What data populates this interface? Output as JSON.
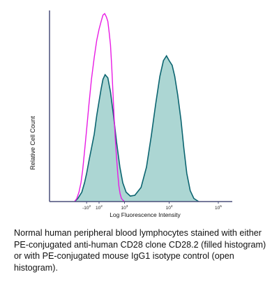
{
  "chart_data": {
    "type": "area",
    "title": "",
    "xlabel": "Log Fluorescence Intensity",
    "ylabel": "Relative Cell Count",
    "x_scale": "logicle",
    "x_ticks": [
      {
        "value": -100,
        "base": "-10",
        "exp": "2"
      },
      {
        "value": 100,
        "base": "10",
        "exp": "2"
      },
      {
        "value": 1000,
        "base": "10",
        "exp": "3"
      },
      {
        "value": 10000,
        "base": "10",
        "exp": "4"
      },
      {
        "value": 100000,
        "base": "10",
        "exp": "5"
      }
    ],
    "grid": false,
    "legend": "none",
    "series": [
      {
        "fill": "#acd6d3",
        "stroke": "#0b6470",
        "style": "filled",
        "points": [
          [
            -400,
            0
          ],
          [
            -300,
            0.02
          ],
          [
            -200,
            0.06
          ],
          [
            -140,
            0.12
          ],
          [
            -100,
            0.18
          ],
          [
            -60,
            0.26
          ],
          [
            -20,
            0.34
          ],
          [
            20,
            0.43
          ],
          [
            60,
            0.55
          ],
          [
            100,
            0.64
          ],
          [
            140,
            0.72
          ],
          [
            180,
            0.78
          ],
          [
            230,
            0.81
          ],
          [
            300,
            0.79
          ],
          [
            380,
            0.7
          ],
          [
            480,
            0.55
          ],
          [
            600,
            0.38
          ],
          [
            750,
            0.22
          ],
          [
            900,
            0.12
          ],
          [
            1100,
            0.06
          ],
          [
            1400,
            0.035
          ],
          [
            1800,
            0.04
          ],
          [
            2500,
            0.09
          ],
          [
            3300,
            0.22
          ],
          [
            4200,
            0.42
          ],
          [
            5200,
            0.62
          ],
          [
            6400,
            0.8
          ],
          [
            7600,
            0.9
          ],
          [
            8800,
            0.93
          ],
          [
            10000,
            0.9
          ],
          [
            11500,
            0.87
          ],
          [
            13000,
            0.8
          ],
          [
            15000,
            0.68
          ],
          [
            17500,
            0.52
          ],
          [
            20000,
            0.34
          ],
          [
            23000,
            0.18
          ],
          [
            27000,
            0.07
          ],
          [
            32000,
            0.02
          ],
          [
            40000,
            0
          ]
        ]
      },
      {
        "stroke": "#e81ce4",
        "style": "open",
        "points": [
          [
            -400,
            0
          ],
          [
            -330,
            0.02
          ],
          [
            -270,
            0.06
          ],
          [
            -220,
            0.12
          ],
          [
            -180,
            0.2
          ],
          [
            -140,
            0.32
          ],
          [
            -100,
            0.46
          ],
          [
            -60,
            0.62
          ],
          [
            -20,
            0.78
          ],
          [
            20,
            0.92
          ],
          [
            60,
            1.03
          ],
          [
            100,
            1.1
          ],
          [
            140,
            1.15
          ],
          [
            180,
            1.19
          ],
          [
            220,
            1.2
          ],
          [
            260,
            1.18
          ],
          [
            300,
            1.15
          ],
          [
            340,
            1.08
          ],
          [
            380,
            1.0
          ],
          [
            420,
            0.86
          ],
          [
            460,
            0.7
          ],
          [
            500,
            0.55
          ],
          [
            550,
            0.4
          ],
          [
            600,
            0.28
          ],
          [
            650,
            0.18
          ],
          [
            700,
            0.1
          ],
          [
            760,
            0.05
          ],
          [
            830,
            0.02
          ],
          [
            900,
            0.01
          ],
          [
            1000,
            0
          ]
        ]
      }
    ],
    "caption": "Normal human peripheral blood lymphocytes stained with either PE-conjugated anti-human CD28 clone CD28.2 (filled histogram) or with PE-conjugated mouse IgG1 isotype control (open histogram)."
  }
}
